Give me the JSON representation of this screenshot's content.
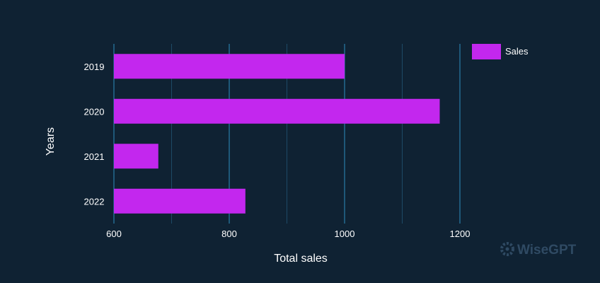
{
  "chart_data": {
    "type": "bar",
    "orientation": "horizontal",
    "categories": [
      "2019",
      "2020",
      "2021",
      "2022"
    ],
    "series": [
      {
        "name": "Sales",
        "values": [
          1000,
          1165,
          677,
          828
        ]
      }
    ],
    "xlabel": "Total sales",
    "ylabel": "Years",
    "xlim": [
      600,
      1200
    ],
    "x_ticks": [
      600,
      800,
      1000,
      1200
    ],
    "grid": "vertical",
    "legend": "top-right"
  },
  "colors": {
    "background": "#0f2233",
    "bar": "#c327ee",
    "grid_major": "#2c8fbf",
    "grid_minor": "#1d4a66",
    "text": "#ffffff",
    "brand": "#2f4a63"
  },
  "brand": {
    "name": "WiseGPT",
    "icon": "wisegpt-logo-icon"
  }
}
